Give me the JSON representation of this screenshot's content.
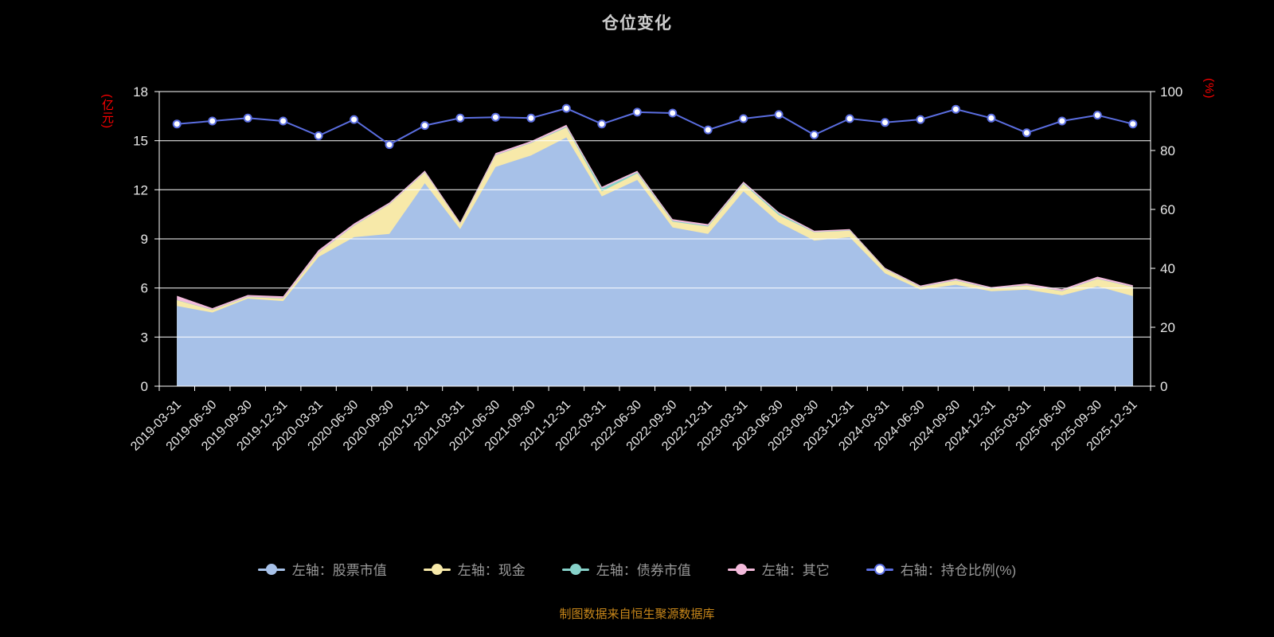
{
  "title": "仓位变化",
  "source_note": "制图数据来自恒生聚源数据库",
  "colors": {
    "background": "#000000",
    "title": "#cccccc",
    "axis_unit": "#ff0000",
    "tick_label": "#e8e8e8",
    "grid_line": "#ffffff",
    "series_fills": [
      "#a7c1e8",
      "#f7e9a9",
      "#86d1c9",
      "#f3badb"
    ],
    "ratio_line": "#5b6ee1",
    "ratio_marker_fill": "#ffffff",
    "legend_text": "#9a9a9a",
    "source_text": "#c8871a"
  },
  "chart_data": {
    "type": "area",
    "title": "仓位变化",
    "grid": true,
    "legend_position": "bottom",
    "left_axis": {
      "label": "(亿元)",
      "lim": [
        0,
        18
      ],
      "ticks": [
        0,
        3,
        6,
        9,
        12,
        15,
        18
      ]
    },
    "right_axis": {
      "label": "(%)",
      "lim": [
        0,
        100
      ],
      "ticks": [
        0,
        20,
        40,
        60,
        80,
        100
      ]
    },
    "categories": [
      "2019-03-31",
      "2019-06-30",
      "2019-09-30",
      "2019-12-31",
      "2020-03-31",
      "2020-06-30",
      "2020-09-30",
      "2020-12-31",
      "2021-03-31",
      "2021-06-30",
      "2021-09-30",
      "2021-12-31",
      "2022-03-31",
      "2022-06-30",
      "2022-09-30",
      "2022-12-31",
      "2023-03-31",
      "2023-06-30",
      "2023-09-30",
      "2023-12-31",
      "2024-03-31",
      "2024-06-30",
      "2024-09-30",
      "2024-12-31",
      "2025-03-31",
      "2025-06-30",
      "2025-09-30",
      "2025-12-31"
    ],
    "series": [
      {
        "name": "左轴：股票市值",
        "axis": "left",
        "type": "area-stack",
        "values": [
          4.9,
          4.5,
          5.35,
          5.2,
          7.9,
          9.1,
          9.3,
          12.4,
          9.6,
          13.4,
          14.1,
          15.2,
          11.6,
          12.6,
          9.7,
          9.3,
          11.9,
          10.0,
          8.9,
          9.1,
          6.9,
          5.9,
          6.2,
          5.8,
          5.9,
          5.55,
          6.1,
          5.5
        ]
      },
      {
        "name": "左轴：现金",
        "axis": "left",
        "type": "area-stack",
        "values": [
          0.35,
          0.15,
          0.1,
          0.15,
          0.25,
          0.7,
          1.8,
          0.65,
          0.3,
          0.7,
          0.75,
          0.6,
          0.3,
          0.4,
          0.35,
          0.45,
          0.45,
          0.45,
          0.5,
          0.4,
          0.25,
          0.15,
          0.25,
          0.15,
          0.25,
          0.25,
          0.45,
          0.55
        ]
      },
      {
        "name": "左轴：债券市值",
        "axis": "left",
        "type": "area-stack",
        "values": [
          0.02,
          0.02,
          0.02,
          0.02,
          0.02,
          0.02,
          0.02,
          0.02,
          0.02,
          0.02,
          0.02,
          0.05,
          0.18,
          0.06,
          0.05,
          0.05,
          0.05,
          0.1,
          0.02,
          0.02,
          0.02,
          0.02,
          0.02,
          0.02,
          0.02,
          0.02,
          0.02,
          0.02
        ]
      },
      {
        "name": "左轴：其它",
        "axis": "left",
        "type": "area-stack",
        "values": [
          0.25,
          0.1,
          0.1,
          0.12,
          0.15,
          0.12,
          0.1,
          0.1,
          0.08,
          0.12,
          0.1,
          0.12,
          0.1,
          0.1,
          0.1,
          0.1,
          0.1,
          0.08,
          0.08,
          0.08,
          0.06,
          0.08,
          0.1,
          0.08,
          0.1,
          0.1,
          0.12,
          0.1
        ]
      },
      {
        "name": "右轴：持仓比例(%)",
        "axis": "right",
        "type": "line",
        "values": [
          89,
          90,
          91,
          90,
          85,
          90.5,
          82,
          88.5,
          91,
          91.3,
          91,
          94.3,
          89,
          93,
          92.7,
          87,
          90.8,
          92.2,
          85.3,
          90.8,
          89.5,
          90.5,
          94,
          91,
          86,
          90,
          92,
          89
        ]
      }
    ]
  }
}
